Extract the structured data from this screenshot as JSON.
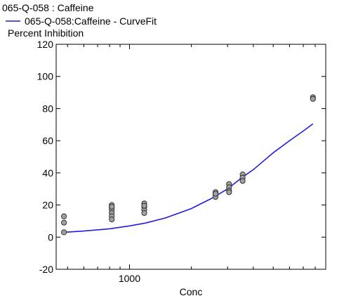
{
  "legend": {
    "points_label": "065-Q-058  : Caffeine",
    "curve_label": "065-Q-058:Caffeine - CurveFit"
  },
  "chart_data": {
    "type": "scatter",
    "xscale": "log",
    "xlabel": "Conc",
    "ylabel": "Percent Inhibition",
    "xlim": [
      440,
      9000
    ],
    "ylim": [
      -20,
      120
    ],
    "yticks": [
      -20,
      0,
      20,
      40,
      60,
      80,
      100,
      120
    ],
    "xtick_labels": [
      {
        "value": 1000,
        "label": "1000"
      }
    ],
    "grid": false,
    "legend_position": "top-left",
    "colors": {
      "points": "#a0a0a0",
      "curve": "#1f1fd8"
    },
    "series": [
      {
        "kind": "points",
        "x": [
          480,
          480,
          480,
          820,
          820,
          820,
          820,
          820,
          820,
          820,
          1180,
          1180,
          1180,
          1180,
          1180,
          2620,
          2620,
          2620,
          2620,
          3050,
          3050,
          3050,
          3050,
          3550,
          3550,
          3550,
          7800,
          7800
        ],
        "y": [
          13,
          9,
          3,
          20,
          18.5,
          17,
          15,
          13,
          11,
          19,
          21,
          19,
          17,
          15,
          19.5,
          28,
          26.5,
          25,
          27,
          33,
          31,
          29,
          28,
          39,
          37,
          35,
          87,
          86
        ]
      },
      {
        "name": "065-Q-058:Caffeine - CurveFit",
        "kind": "curve",
        "x": [
          480,
          600,
          800,
          1000,
          1200,
          1500,
          2000,
          2500,
          3000,
          3500,
          4000,
          5000,
          6000,
          7000,
          7800
        ],
        "y": [
          3,
          3.8,
          5.2,
          7,
          8.8,
          12,
          17.8,
          24,
          30,
          36.8,
          42,
          52.5,
          60,
          66,
          70.5
        ]
      }
    ]
  }
}
